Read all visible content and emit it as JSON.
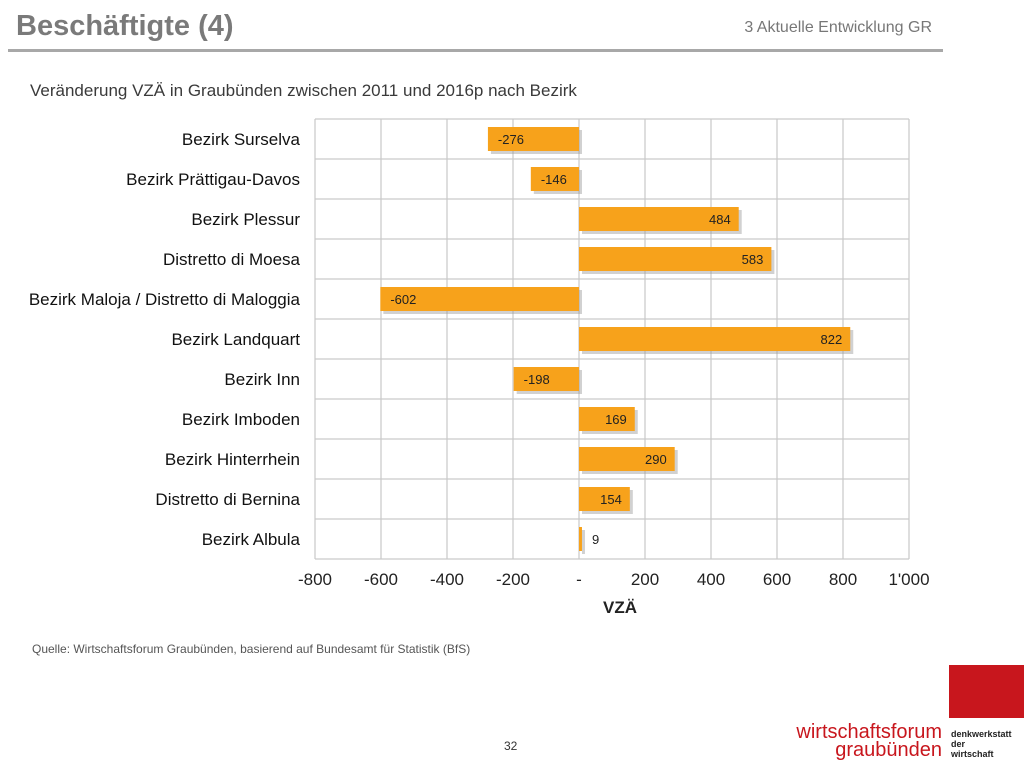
{
  "header": {
    "title": "Beschäftigte (4)",
    "section": "3 Aktuelle Entwicklung GR"
  },
  "chart_data": {
    "type": "bar",
    "orientation": "horizontal",
    "title": "Veränderung VZÄ in Graubünden zwischen 2011 und 2016p nach Bezirk",
    "xlabel": "VZÄ",
    "ylabel": "",
    "xlim": [
      -800,
      1000
    ],
    "xticks": [
      "-800",
      "-600",
      "-400",
      "-200",
      "-",
      "200",
      "400",
      "600",
      "800",
      "1'000"
    ],
    "categories": [
      "Bezirk Surselva",
      "Bezirk Prättigau-Davos",
      "Bezirk Plessur",
      "Distretto di Moesa",
      "Bezirk Maloja / Distretto di Maloggia",
      "Bezirk Landquart",
      "Bezirk Inn",
      "Bezirk Imboden",
      "Bezirk Hinterrhein",
      "Distretto di Bernina",
      "Bezirk Albula"
    ],
    "values": [
      -276,
      -146,
      484,
      583,
      -602,
      822,
      -198,
      169,
      290,
      154,
      9
    ],
    "labels": [
      "-276",
      "-146",
      "484",
      "583",
      "-602",
      "822",
      "-198",
      "169",
      "290",
      "154",
      "9"
    ],
    "grid": true,
    "bar_color": "#f7a21b"
  },
  "footer": {
    "source": "Quelle: Wirtschaftsforum Graubünden, basierend auf Bundesamt für Statistik (BfS)",
    "page": "32"
  },
  "logo": {
    "line1": "wirtschaftsforum",
    "line2": "graubünden",
    "small1": "denkwerkstatt",
    "small2": "der",
    "small3": "wirtschaft",
    "color": "#c8161d"
  }
}
